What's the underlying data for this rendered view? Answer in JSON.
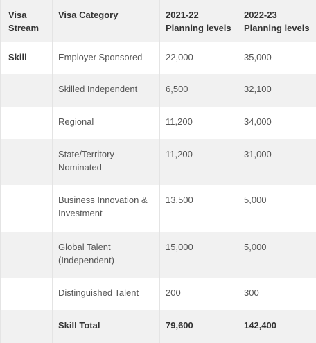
{
  "table": {
    "headers": [
      "Visa\nStream",
      "Visa Category",
      "2021-22\nPlanning levels",
      "2022-23\nPlanning levels"
    ],
    "rows": [
      {
        "stream": "Skill",
        "category": "Employer Sponsored",
        "y2122": "22,000",
        "y2223": "35,000"
      },
      {
        "stream": "",
        "category": "Skilled Independent",
        "y2122": "6,500",
        "y2223": "32,100"
      },
      {
        "stream": "",
        "category": "Regional",
        "y2122": "11,200",
        "y2223": "34,000"
      },
      {
        "stream": "",
        "category": "State/Territory Nominated",
        "y2122": "11,200",
        "y2223": "31,000"
      },
      {
        "stream": "",
        "category": "Business Innovation & Investment",
        "y2122": "13,500",
        "y2223": "5,000"
      },
      {
        "stream": "",
        "category": "Global Talent (Independent)",
        "y2122": "15,000",
        "y2223": "5,000"
      },
      {
        "stream": "",
        "category": "Distinguished Talent",
        "y2122": "200",
        "y2223": "300"
      },
      {
        "stream": "",
        "category": "Skill Total",
        "y2122": "79,600",
        "y2223": "142,400"
      }
    ]
  }
}
